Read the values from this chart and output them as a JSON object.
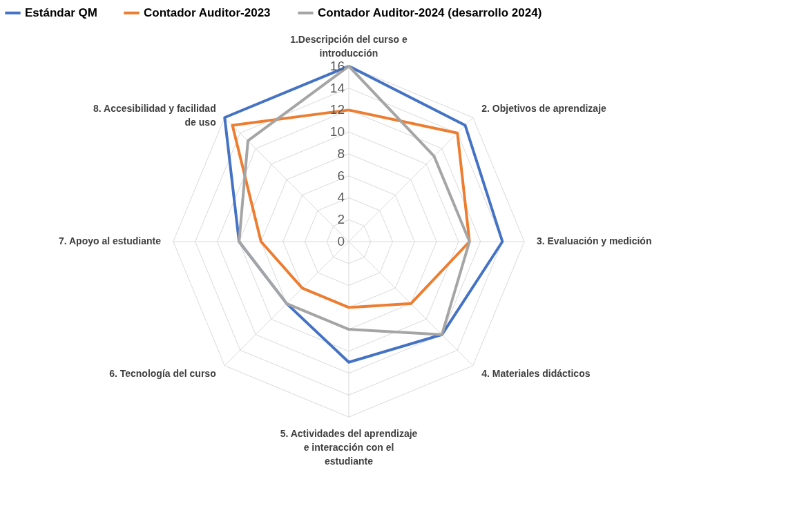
{
  "chart_data": {
    "type": "radar",
    "categories": [
      "1.Descripción del curso e introducción",
      "2. Objetivos de aprendizaje",
      "3. Evaluación y medición",
      "4. Materiales didácticos",
      "5. Actividades del aprendizaje e interacción con el estudiante",
      "6. Tecnología del curso",
      "7. Apoyo al estudiante",
      "8. Accesibilidad y facilidad de uso"
    ],
    "series": [
      {
        "name": "Estándar QM",
        "color": "#4472c4",
        "values": [
          16,
          15,
          14,
          12,
          11,
          8,
          10,
          16
        ]
      },
      {
        "name": "Contador Auditor-2023",
        "color": "#ed7d31",
        "values": [
          12,
          14,
          11,
          8,
          6,
          6,
          8,
          15
        ]
      },
      {
        "name": "Contador Auditor-2024 (desarrollo 2024)",
        "color": "#a5a5a5",
        "values": [
          16,
          11,
          11,
          12,
          8,
          8,
          10,
          13
        ]
      }
    ],
    "ylim": [
      0,
      16
    ],
    "yticks": [
      0,
      2,
      4,
      6,
      8,
      10,
      12,
      14,
      16
    ],
    "grid": true,
    "legend": "top",
    "marker": "none",
    "line_style": "solid"
  }
}
